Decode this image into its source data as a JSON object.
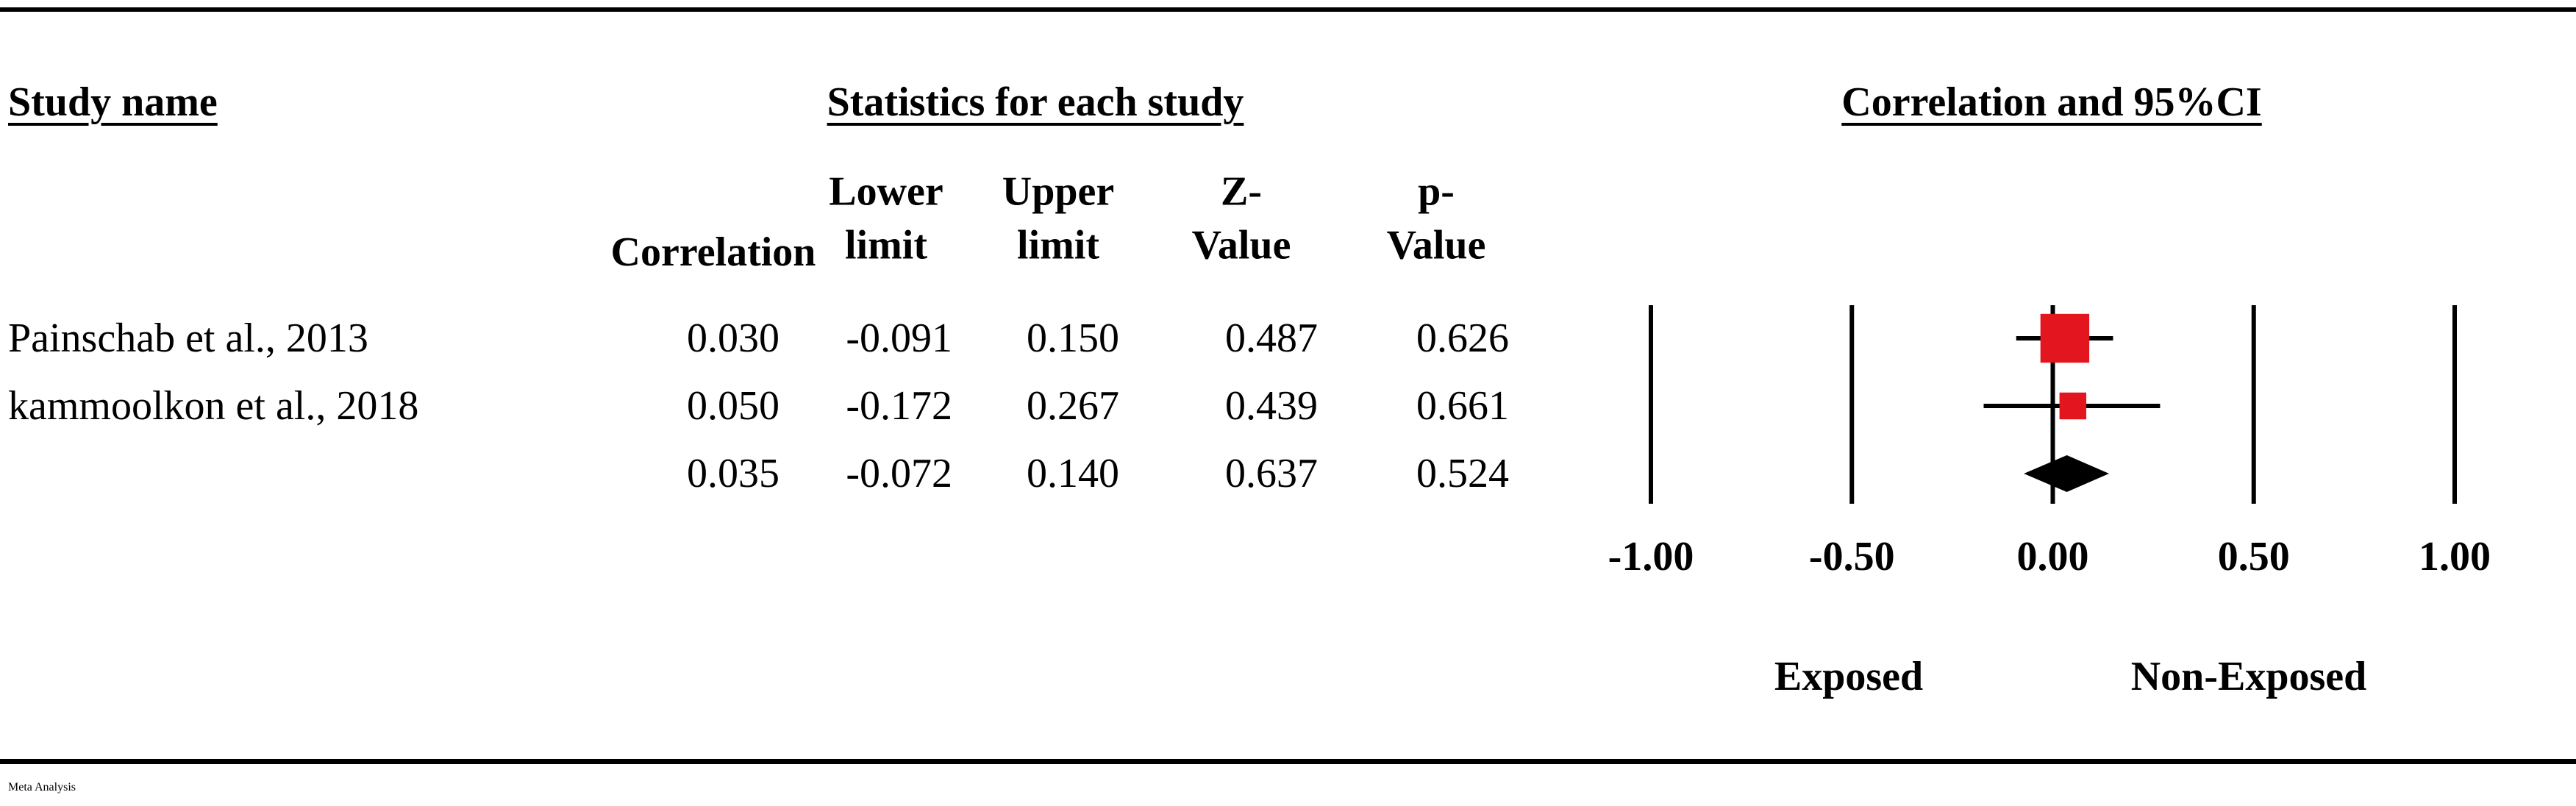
{
  "chart_data": {
    "type": "forest",
    "headers": {
      "study": "Study name",
      "statistics": "Statistics for each study",
      "plot": "Correlation and 95%CI"
    },
    "studies": [
      "Painschab et al., 2013",
      "kammoolkon et al., 2018",
      null
    ],
    "columns": [
      {
        "name": "Correlation",
        "values": [
          0.03,
          0.05,
          0.035
        ],
        "value_labels": [
          "0.030",
          "0.050",
          "0.035"
        ]
      },
      {
        "name": "Lower limit",
        "values": [
          -0.091,
          -0.172,
          -0.072
        ],
        "value_labels": [
          "-0.091",
          "-0.172",
          "-0.072"
        ]
      },
      {
        "name": "Upper limit",
        "values": [
          0.15,
          0.267,
          0.14
        ],
        "value_labels": [
          "0.150",
          "0.267",
          "0.140"
        ]
      },
      {
        "name": "Z-Value",
        "values": [
          0.487,
          0.439,
          0.637
        ],
        "value_labels": [
          "0.487",
          "0.439",
          "0.637"
        ]
      },
      {
        "name": "p-Value",
        "values": [
          0.626,
          0.661,
          0.524
        ],
        "value_labels": [
          "0.626",
          "0.661",
          "0.524"
        ]
      }
    ],
    "xlim": [
      -1,
      1
    ],
    "xticks": [
      {
        "value": -1,
        "label": "-1.00"
      },
      {
        "value": -0.5,
        "label": "-0.50"
      },
      {
        "value": 0,
        "label": "0.00"
      },
      {
        "value": 0.5,
        "label": "0.50"
      },
      {
        "value": 1,
        "label": "1.00"
      }
    ],
    "axis_labels": {
      "left": "Exposed",
      "right": "Non-Exposed"
    },
    "footer": "Meta Analysis",
    "color": "#e3161f",
    "summary_color": "#000000"
  }
}
